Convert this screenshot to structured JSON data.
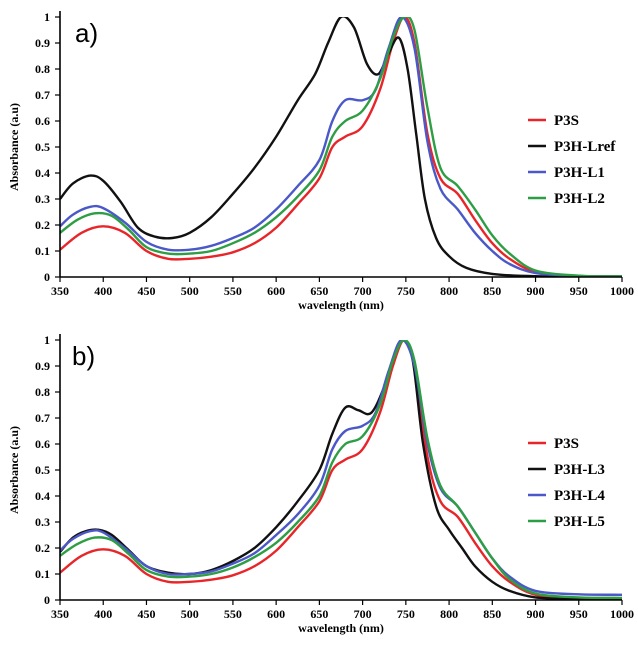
{
  "chart_data": [
    {
      "type": "line",
      "panel_label": "a)",
      "xlabel": "wavelength (nm)",
      "ylabel": "Absorbance (a.u)",
      "xlim": [
        350,
        1000
      ],
      "ylim": [
        0,
        1
      ],
      "xticks": [
        350,
        400,
        450,
        500,
        550,
        600,
        650,
        700,
        750,
        800,
        850,
        900,
        950,
        1000
      ],
      "yticks": [
        0,
        0.1,
        0.2,
        0.3,
        0.4,
        0.5,
        0.6,
        0.7,
        0.8,
        0.9,
        1
      ],
      "grid": false,
      "legend_position": "right",
      "series": [
        {
          "name": "P3S",
          "color": "#e8262a",
          "points": [
            [
              350,
              0.105
            ],
            [
              375,
              0.17
            ],
            [
              400,
              0.195
            ],
            [
              425,
              0.17
            ],
            [
              450,
              0.1
            ],
            [
              475,
              0.07
            ],
            [
              500,
              0.07
            ],
            [
              525,
              0.078
            ],
            [
              550,
              0.095
            ],
            [
              575,
              0.13
            ],
            [
              600,
              0.19
            ],
            [
              625,
              0.28
            ],
            [
              650,
              0.38
            ],
            [
              665,
              0.5
            ],
            [
              680,
              0.54
            ],
            [
              700,
              0.58
            ],
            [
              720,
              0.72
            ],
            [
              735,
              0.9
            ],
            [
              748,
              1.0
            ],
            [
              760,
              0.9
            ],
            [
              775,
              0.55
            ],
            [
              790,
              0.38
            ],
            [
              810,
              0.32
            ],
            [
              830,
              0.22
            ],
            [
              850,
              0.13
            ],
            [
              870,
              0.07
            ],
            [
              900,
              0.02
            ],
            [
              950,
              0.004
            ],
            [
              1000,
              0.002
            ]
          ]
        },
        {
          "name": "P3H-Lref",
          "color": "#111111",
          "points": [
            [
              350,
              0.3
            ],
            [
              365,
              0.36
            ],
            [
              385,
              0.39
            ],
            [
              400,
              0.37
            ],
            [
              420,
              0.29
            ],
            [
              440,
              0.19
            ],
            [
              460,
              0.155
            ],
            [
              480,
              0.15
            ],
            [
              500,
              0.17
            ],
            [
              525,
              0.23
            ],
            [
              550,
              0.32
            ],
            [
              575,
              0.42
            ],
            [
              600,
              0.54
            ],
            [
              625,
              0.68
            ],
            [
              645,
              0.78
            ],
            [
              660,
              0.9
            ],
            [
              675,
              1.0
            ],
            [
              690,
              0.96
            ],
            [
              705,
              0.82
            ],
            [
              718,
              0.78
            ],
            [
              730,
              0.86
            ],
            [
              742,
              0.92
            ],
            [
              752,
              0.8
            ],
            [
              762,
              0.55
            ],
            [
              772,
              0.3
            ],
            [
              785,
              0.15
            ],
            [
              800,
              0.08
            ],
            [
              820,
              0.035
            ],
            [
              850,
              0.012
            ],
            [
              900,
              0.003
            ],
            [
              1000,
              0.002
            ]
          ]
        },
        {
          "name": "P3H-L1",
          "color": "#4a58c8",
          "points": [
            [
              350,
              0.195
            ],
            [
              365,
              0.24
            ],
            [
              385,
              0.27
            ],
            [
              400,
              0.265
            ],
            [
              425,
              0.21
            ],
            [
              450,
              0.135
            ],
            [
              475,
              0.105
            ],
            [
              500,
              0.105
            ],
            [
              525,
              0.12
            ],
            [
              550,
              0.15
            ],
            [
              575,
              0.19
            ],
            [
              600,
              0.26
            ],
            [
              625,
              0.35
            ],
            [
              650,
              0.45
            ],
            [
              665,
              0.6
            ],
            [
              680,
              0.68
            ],
            [
              700,
              0.68
            ],
            [
              715,
              0.72
            ],
            [
              730,
              0.88
            ],
            [
              745,
              1.0
            ],
            [
              760,
              0.88
            ],
            [
              775,
              0.52
            ],
            [
              790,
              0.34
            ],
            [
              810,
              0.26
            ],
            [
              830,
              0.17
            ],
            [
              850,
              0.1
            ],
            [
              870,
              0.05
            ],
            [
              900,
              0.015
            ],
            [
              950,
              0.004
            ],
            [
              1000,
              0.002
            ]
          ]
        },
        {
          "name": "P3H-L2",
          "color": "#2e9e44",
          "points": [
            [
              350,
              0.17
            ],
            [
              370,
              0.22
            ],
            [
              390,
              0.245
            ],
            [
              410,
              0.235
            ],
            [
              430,
              0.18
            ],
            [
              450,
              0.115
            ],
            [
              475,
              0.09
            ],
            [
              500,
              0.09
            ],
            [
              525,
              0.1
            ],
            [
              550,
              0.13
            ],
            [
              575,
              0.17
            ],
            [
              600,
              0.23
            ],
            [
              625,
              0.31
            ],
            [
              650,
              0.41
            ],
            [
              665,
              0.54
            ],
            [
              680,
              0.6
            ],
            [
              700,
              0.64
            ],
            [
              720,
              0.76
            ],
            [
              735,
              0.92
            ],
            [
              748,
              1.0
            ],
            [
              760,
              0.95
            ],
            [
              775,
              0.65
            ],
            [
              790,
              0.42
            ],
            [
              810,
              0.35
            ],
            [
              830,
              0.26
            ],
            [
              850,
              0.16
            ],
            [
              870,
              0.09
            ],
            [
              900,
              0.025
            ],
            [
              950,
              0.005
            ],
            [
              1000,
              0.002
            ]
          ]
        }
      ]
    },
    {
      "type": "line",
      "panel_label": "b)",
      "xlabel": "wavelength (nm)",
      "ylabel": "Absorbance (a.u)",
      "xlim": [
        350,
        1000
      ],
      "ylim": [
        0,
        1
      ],
      "xticks": [
        350,
        400,
        450,
        500,
        550,
        600,
        650,
        700,
        750,
        800,
        850,
        900,
        950,
        1000
      ],
      "yticks": [
        0,
        0.1,
        0.2,
        0.3,
        0.4,
        0.5,
        0.6,
        0.7,
        0.8,
        0.9,
        1
      ],
      "grid": false,
      "legend_position": "right",
      "series": [
        {
          "name": "P3S",
          "color": "#e8262a",
          "points": [
            [
              350,
              0.105
            ],
            [
              375,
              0.17
            ],
            [
              400,
              0.195
            ],
            [
              425,
              0.17
            ],
            [
              450,
              0.1
            ],
            [
              475,
              0.07
            ],
            [
              500,
              0.07
            ],
            [
              525,
              0.078
            ],
            [
              550,
              0.095
            ],
            [
              575,
              0.13
            ],
            [
              600,
              0.19
            ],
            [
              625,
              0.28
            ],
            [
              650,
              0.38
            ],
            [
              665,
              0.5
            ],
            [
              680,
              0.54
            ],
            [
              700,
              0.58
            ],
            [
              720,
              0.72
            ],
            [
              735,
              0.9
            ],
            [
              748,
              1.0
            ],
            [
              760,
              0.9
            ],
            [
              775,
              0.55
            ],
            [
              790,
              0.38
            ],
            [
              810,
              0.32
            ],
            [
              830,
              0.22
            ],
            [
              850,
              0.13
            ],
            [
              870,
              0.07
            ],
            [
              900,
              0.02
            ],
            [
              950,
              0.004
            ],
            [
              1000,
              0.002
            ]
          ]
        },
        {
          "name": "P3H-L3",
          "color": "#111111",
          "points": [
            [
              350,
              0.185
            ],
            [
              365,
              0.24
            ],
            [
              380,
              0.265
            ],
            [
              395,
              0.27
            ],
            [
              410,
              0.25
            ],
            [
              430,
              0.19
            ],
            [
              450,
              0.13
            ],
            [
              475,
              0.105
            ],
            [
              500,
              0.1
            ],
            [
              525,
              0.115
            ],
            [
              550,
              0.15
            ],
            [
              575,
              0.2
            ],
            [
              600,
              0.28
            ],
            [
              625,
              0.38
            ],
            [
              650,
              0.5
            ],
            [
              665,
              0.64
            ],
            [
              680,
              0.74
            ],
            [
              695,
              0.73
            ],
            [
              710,
              0.72
            ],
            [
              725,
              0.82
            ],
            [
              738,
              0.95
            ],
            [
              747,
              1.0
            ],
            [
              758,
              0.92
            ],
            [
              770,
              0.6
            ],
            [
              785,
              0.36
            ],
            [
              800,
              0.27
            ],
            [
              815,
              0.2
            ],
            [
              830,
              0.13
            ],
            [
              850,
              0.07
            ],
            [
              870,
              0.035
            ],
            [
              900,
              0.01
            ],
            [
              950,
              0.003
            ],
            [
              1000,
              0.002
            ]
          ]
        },
        {
          "name": "P3H-L4",
          "color": "#4a58c8",
          "points": [
            [
              350,
              0.19
            ],
            [
              365,
              0.235
            ],
            [
              385,
              0.265
            ],
            [
              400,
              0.26
            ],
            [
              425,
              0.2
            ],
            [
              450,
              0.13
            ],
            [
              475,
              0.1
            ],
            [
              500,
              0.1
            ],
            [
              525,
              0.11
            ],
            [
              550,
              0.14
            ],
            [
              575,
              0.18
            ],
            [
              600,
              0.25
            ],
            [
              625,
              0.33
            ],
            [
              650,
              0.44
            ],
            [
              665,
              0.58
            ],
            [
              680,
              0.65
            ],
            [
              700,
              0.67
            ],
            [
              715,
              0.72
            ],
            [
              730,
              0.88
            ],
            [
              745,
              1.0
            ],
            [
              760,
              0.9
            ],
            [
              775,
              0.6
            ],
            [
              790,
              0.43
            ],
            [
              810,
              0.36
            ],
            [
              830,
              0.26
            ],
            [
              850,
              0.16
            ],
            [
              870,
              0.09
            ],
            [
              900,
              0.035
            ],
            [
              950,
              0.022
            ],
            [
              1000,
              0.02
            ]
          ]
        },
        {
          "name": "P3H-L5",
          "color": "#2e9e44",
          "points": [
            [
              350,
              0.17
            ],
            [
              370,
              0.215
            ],
            [
              390,
              0.24
            ],
            [
              410,
              0.23
            ],
            [
              430,
              0.175
            ],
            [
              450,
              0.115
            ],
            [
              475,
              0.09
            ],
            [
              500,
              0.09
            ],
            [
              525,
              0.1
            ],
            [
              550,
              0.125
            ],
            [
              575,
              0.165
            ],
            [
              600,
              0.22
            ],
            [
              625,
              0.3
            ],
            [
              650,
              0.4
            ],
            [
              665,
              0.53
            ],
            [
              680,
              0.6
            ],
            [
              700,
              0.63
            ],
            [
              720,
              0.75
            ],
            [
              735,
              0.92
            ],
            [
              748,
              1.0
            ],
            [
              760,
              0.92
            ],
            [
              775,
              0.62
            ],
            [
              790,
              0.44
            ],
            [
              810,
              0.36
            ],
            [
              830,
              0.26
            ],
            [
              850,
              0.16
            ],
            [
              870,
              0.08
            ],
            [
              900,
              0.025
            ],
            [
              950,
              0.01
            ],
            [
              1000,
              0.008
            ]
          ]
        }
      ]
    }
  ]
}
